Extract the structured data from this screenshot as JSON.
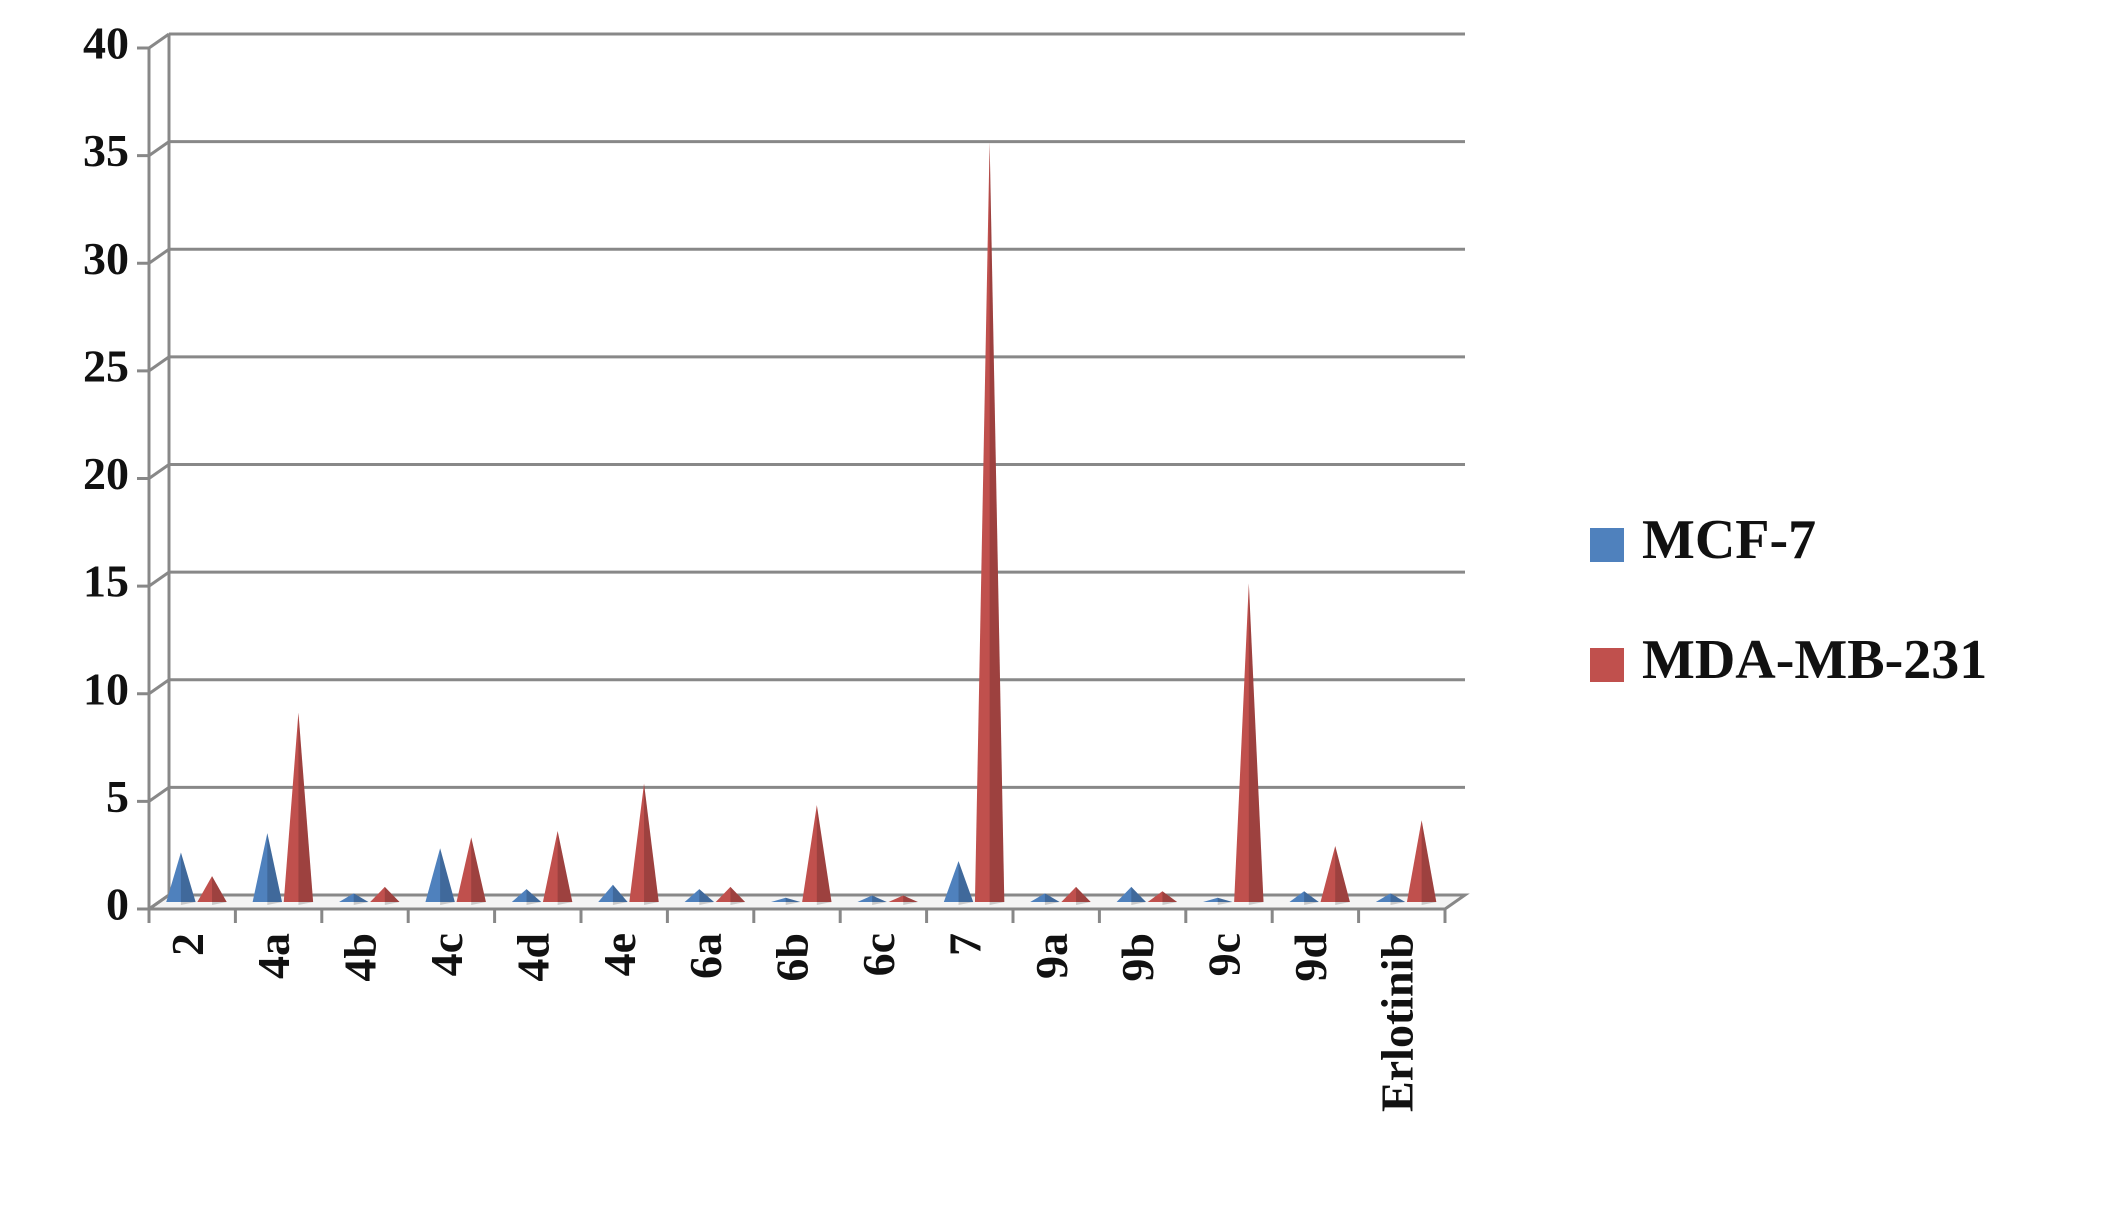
{
  "chart_data": {
    "type": "cone",
    "categories": [
      "2",
      "4a",
      "4b",
      "4c",
      "4d",
      "4e",
      "6a",
      "6b",
      "6c",
      "7",
      "9a",
      "9b",
      "9c",
      "9d",
      "Erlotinib"
    ],
    "series": [
      {
        "name": "MCF-7",
        "color": "#4f81bd",
        "values": [
          2.3,
          3.2,
          0.4,
          2.5,
          0.6,
          0.8,
          0.6,
          0.2,
          0.3,
          1.9,
          0.4,
          0.7,
          0.2,
          0.5,
          0.4
        ]
      },
      {
        "name": "MDA-MB-231",
        "color": "#c0504d",
        "values": [
          1.2,
          8.8,
          0.7,
          3.0,
          3.3,
          5.5,
          0.7,
          4.5,
          0.3,
          35.3,
          0.7,
          0.5,
          14.8,
          2.6,
          3.8
        ]
      }
    ],
    "ylim": [
      0,
      40
    ],
    "yticks": [
      0,
      5,
      10,
      15,
      20,
      25,
      30,
      35,
      40
    ],
    "grid": true,
    "legend": "right"
  }
}
